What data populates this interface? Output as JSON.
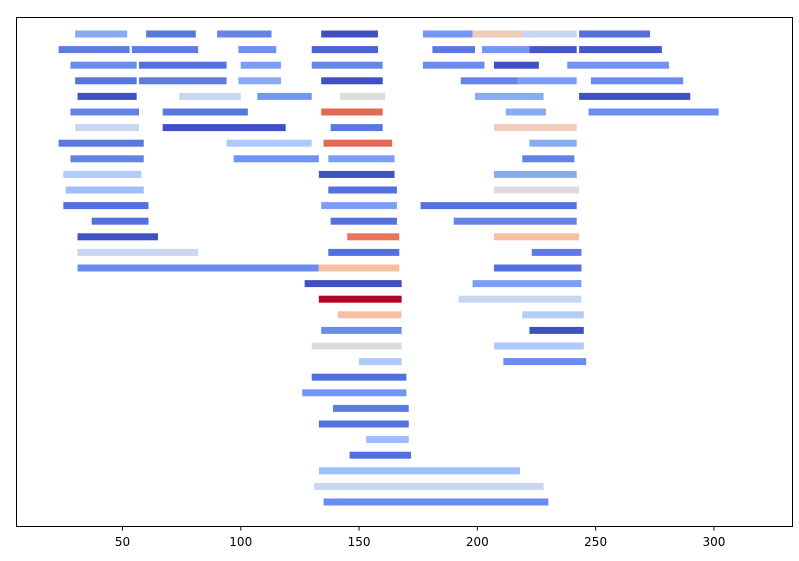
{
  "chart_data": {
    "type": "bar",
    "orientation": "horizontal-intervals",
    "title": "",
    "xlabel": "",
    "ylabel": "",
    "xlim": [
      5,
      333
    ],
    "ylim": [
      0,
      32
    ],
    "x_ticks": [
      50,
      100,
      150,
      200,
      250,
      300
    ],
    "x_tick_labels": [
      "50",
      "100",
      "150",
      "200",
      "250",
      "300"
    ],
    "grid": false,
    "legend": "none",
    "bar_thickness_rows": 0.45,
    "segments": [
      {
        "x0": 30,
        "x1": 52,
        "row": 0,
        "color": "#88abf4"
      },
      {
        "x0": 60,
        "x1": 81,
        "row": 0,
        "color": "#5878de"
      },
      {
        "x0": 90,
        "x1": 113,
        "row": 0,
        "color": "#6384e6"
      },
      {
        "x0": 134,
        "x1": 158,
        "row": 0,
        "color": "#3f50c4"
      },
      {
        "x0": 177,
        "x1": 198,
        "row": 0,
        "color": "#7396f5"
      },
      {
        "x0": 198,
        "x1": 219,
        "row": 0,
        "color": "#f0cdbb"
      },
      {
        "x0": 219,
        "x1": 242,
        "row": 0,
        "color": "#c8d6f2"
      },
      {
        "x0": 243,
        "x1": 273,
        "row": 0,
        "color": "#5470de"
      },
      {
        "x0": 23,
        "x1": 53,
        "row": 1,
        "color": "#5b7be0"
      },
      {
        "x0": 54,
        "x1": 82,
        "row": 1,
        "color": "#5d7ce6"
      },
      {
        "x0": 99,
        "x1": 115,
        "row": 1,
        "color": "#6e90f1"
      },
      {
        "x0": 130,
        "x1": 158,
        "row": 1,
        "color": "#4a62d3"
      },
      {
        "x0": 181,
        "x1": 199,
        "row": 1,
        "color": "#5a78df"
      },
      {
        "x0": 202,
        "x1": 222,
        "row": 1,
        "color": "#7396f5"
      },
      {
        "x0": 222,
        "x1": 242,
        "row": 1,
        "color": "#4358cb"
      },
      {
        "x0": 243,
        "x1": 278,
        "row": 1,
        "color": "#4358cb"
      },
      {
        "x0": 28,
        "x1": 56,
        "row": 2,
        "color": "#6a8cef"
      },
      {
        "x0": 57,
        "x1": 94,
        "row": 2,
        "color": "#5472dd"
      },
      {
        "x0": 100,
        "x1": 117,
        "row": 2,
        "color": "#7b9ff9"
      },
      {
        "x0": 130,
        "x1": 160,
        "row": 2,
        "color": "#6587e8"
      },
      {
        "x0": 177,
        "x1": 203,
        "row": 2,
        "color": "#6b8df0"
      },
      {
        "x0": 207,
        "x1": 226,
        "row": 2,
        "color": "#3f50c4"
      },
      {
        "x0": 238,
        "x1": 281,
        "row": 2,
        "color": "#7192f3"
      },
      {
        "x0": 30,
        "x1": 56,
        "row": 3,
        "color": "#5574de"
      },
      {
        "x0": 57,
        "x1": 94,
        "row": 3,
        "color": "#5b7be0"
      },
      {
        "x0": 99,
        "x1": 117,
        "row": 3,
        "color": "#88abf4"
      },
      {
        "x0": 134,
        "x1": 160,
        "row": 3,
        "color": "#3f50c4"
      },
      {
        "x0": 193,
        "x1": 217,
        "row": 3,
        "color": "#6384e6"
      },
      {
        "x0": 217,
        "x1": 242,
        "row": 3,
        "color": "#7b9ff9"
      },
      {
        "x0": 248,
        "x1": 287,
        "row": 3,
        "color": "#6a8cef"
      },
      {
        "x0": 31,
        "x1": 56,
        "row": 4,
        "color": "#3f50c4"
      },
      {
        "x0": 74,
        "x1": 100,
        "row": 4,
        "color": "#c8d6f2"
      },
      {
        "x0": 107,
        "x1": 130,
        "row": 4,
        "color": "#7396f5"
      },
      {
        "x0": 142,
        "x1": 161,
        "row": 4,
        "color": "#dcdcdc"
      },
      {
        "x0": 199,
        "x1": 228,
        "row": 4,
        "color": "#88abf4"
      },
      {
        "x0": 243,
        "x1": 290,
        "row": 4,
        "color": "#3f50c4"
      },
      {
        "x0": 28,
        "x1": 57,
        "row": 5,
        "color": "#6384e6"
      },
      {
        "x0": 67,
        "x1": 103,
        "row": 5,
        "color": "#5878de"
      },
      {
        "x0": 134,
        "x1": 160,
        "row": 5,
        "color": "#e26952"
      },
      {
        "x0": 212,
        "x1": 229,
        "row": 5,
        "color": "#88abf4"
      },
      {
        "x0": 247,
        "x1": 302,
        "row": 5,
        "color": "#6b8df0"
      },
      {
        "x0": 30,
        "x1": 57,
        "row": 6,
        "color": "#c8d6f2"
      },
      {
        "x0": 67,
        "x1": 119,
        "row": 6,
        "color": "#3f50c4"
      },
      {
        "x0": 138,
        "x1": 160,
        "row": 6,
        "color": "#5878de"
      },
      {
        "x0": 207,
        "x1": 242,
        "row": 6,
        "color": "#f0cdbb"
      },
      {
        "x0": 23,
        "x1": 59,
        "row": 7,
        "color": "#5a78df"
      },
      {
        "x0": 94,
        "x1": 130,
        "row": 7,
        "color": "#aec9fc"
      },
      {
        "x0": 135,
        "x1": 164,
        "row": 7,
        "color": "#e26952"
      },
      {
        "x0": 222,
        "x1": 242,
        "row": 7,
        "color": "#88abf4"
      },
      {
        "x0": 28,
        "x1": 59,
        "row": 8,
        "color": "#6384e6"
      },
      {
        "x0": 97,
        "x1": 133,
        "row": 8,
        "color": "#7192f3"
      },
      {
        "x0": 137,
        "x1": 165,
        "row": 8,
        "color": "#7b9ff9"
      },
      {
        "x0": 219,
        "x1": 241,
        "row": 8,
        "color": "#6384e6"
      },
      {
        "x0": 25,
        "x1": 58,
        "row": 9,
        "color": "#b2ccfb"
      },
      {
        "x0": 133,
        "x1": 165,
        "row": 9,
        "color": "#3f50c4"
      },
      {
        "x0": 207,
        "x1": 242,
        "row": 9,
        "color": "#88abf4"
      },
      {
        "x0": 26,
        "x1": 59,
        "row": 10,
        "color": "#9ebeff"
      },
      {
        "x0": 137,
        "x1": 166,
        "row": 10,
        "color": "#5470de"
      },
      {
        "x0": 207,
        "x1": 243,
        "row": 10,
        "color": "#dcdcdc"
      },
      {
        "x0": 25,
        "x1": 61,
        "row": 11,
        "color": "#5470de"
      },
      {
        "x0": 134,
        "x1": 166,
        "row": 11,
        "color": "#7b9ff9"
      },
      {
        "x0": 176,
        "x1": 242,
        "row": 11,
        "color": "#5372dc"
      },
      {
        "x0": 37,
        "x1": 61,
        "row": 12,
        "color": "#5470de"
      },
      {
        "x0": 138,
        "x1": 166,
        "row": 12,
        "color": "#5470de"
      },
      {
        "x0": 190,
        "x1": 242,
        "row": 12,
        "color": "#6384e6"
      },
      {
        "x0": 31,
        "x1": 65,
        "row": 13,
        "color": "#3f50c4"
      },
      {
        "x0": 145,
        "x1": 167,
        "row": 13,
        "color": "#e7745b"
      },
      {
        "x0": 207,
        "x1": 243,
        "row": 13,
        "color": "#f4c0a3"
      },
      {
        "x0": 31,
        "x1": 82,
        "row": 14,
        "color": "#c8d6f2"
      },
      {
        "x0": 137,
        "x1": 167,
        "row": 14,
        "color": "#5470de"
      },
      {
        "x0": 223,
        "x1": 244,
        "row": 14,
        "color": "#5d7ce6"
      },
      {
        "x0": 31,
        "x1": 133,
        "row": 15,
        "color": "#6a8cef"
      },
      {
        "x0": 133,
        "x1": 167,
        "row": 15,
        "color": "#f4c0a3"
      },
      {
        "x0": 207,
        "x1": 244,
        "row": 15,
        "color": "#5470de"
      },
      {
        "x0": 127,
        "x1": 168,
        "row": 16,
        "color": "#3f50c4"
      },
      {
        "x0": 198,
        "x1": 244,
        "row": 16,
        "color": "#7b9ff9"
      },
      {
        "x0": 133,
        "x1": 168,
        "row": 17,
        "color": "#b40426"
      },
      {
        "x0": 192,
        "x1": 244,
        "row": 17,
        "color": "#c8d6f2"
      },
      {
        "x0": 141,
        "x1": 168,
        "row": 18,
        "color": "#f4c0a3"
      },
      {
        "x0": 219,
        "x1": 245,
        "row": 18,
        "color": "#b2ccfb"
      },
      {
        "x0": 134,
        "x1": 168,
        "row": 19,
        "color": "#6a8cef"
      },
      {
        "x0": 222,
        "x1": 245,
        "row": 19,
        "color": "#3f50c4"
      },
      {
        "x0": 130,
        "x1": 168,
        "row": 20,
        "color": "#dcdcdc"
      },
      {
        "x0": 207,
        "x1": 245,
        "row": 20,
        "color": "#aec9fc"
      },
      {
        "x0": 150,
        "x1": 168,
        "row": 21,
        "color": "#aec9fc"
      },
      {
        "x0": 211,
        "x1": 246,
        "row": 21,
        "color": "#6a8cef"
      },
      {
        "x0": 130,
        "x1": 170,
        "row": 22,
        "color": "#5470de"
      },
      {
        "x0": 126,
        "x1": 170,
        "row": 23,
        "color": "#7396f5"
      },
      {
        "x0": 139,
        "x1": 171,
        "row": 24,
        "color": "#5b7be0"
      },
      {
        "x0": 133,
        "x1": 171,
        "row": 25,
        "color": "#5470de"
      },
      {
        "x0": 153,
        "x1": 171,
        "row": 26,
        "color": "#9ebeff"
      },
      {
        "x0": 146,
        "x1": 172,
        "row": 27,
        "color": "#5470de"
      },
      {
        "x0": 133,
        "x1": 218,
        "row": 28,
        "color": "#9ebeff"
      },
      {
        "x0": 131,
        "x1": 228,
        "row": 29,
        "color": "#c8d6f2"
      },
      {
        "x0": 135,
        "x1": 230,
        "row": 30,
        "color": "#6a8cef"
      }
    ]
  }
}
